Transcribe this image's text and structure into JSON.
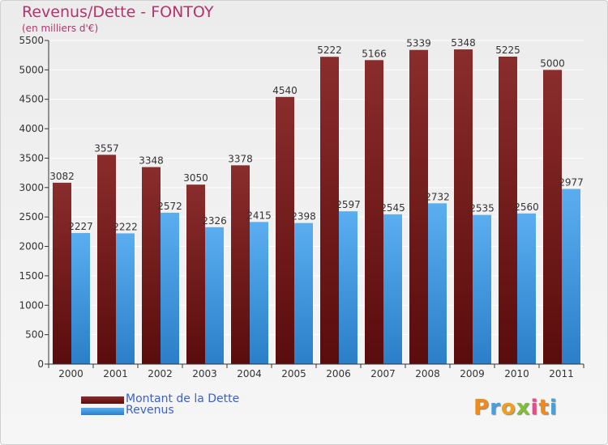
{
  "title": "Revenus/Dette - FONTOY",
  "subtitle": "(en milliers d'€)",
  "logo": {
    "text": "Proxiti",
    "letter_colors": [
      "#f08a1a",
      "#4a9fd8",
      "#f0a020",
      "#7fbf3a",
      "#e84a8a",
      "#f08a1a",
      "#4a9fd8"
    ]
  },
  "colors": {
    "dette": "#7a1e1e",
    "revenus": "#3d9be9",
    "axis": "#333333",
    "grid": "#ffffff"
  },
  "legend": [
    {
      "label": "Montant de la Dette",
      "color": "#7a1e1e"
    },
    {
      "label": "Revenus",
      "color": "#3d9be9"
    }
  ],
  "chart_data": {
    "type": "bar",
    "title": "Revenus/Dette - FONTOY",
    "subtitle": "(en milliers d'€)",
    "categories": [
      "2000",
      "2001",
      "2002",
      "2003",
      "2004",
      "2005",
      "2006",
      "2007",
      "2008",
      "2009",
      "2010",
      "2011"
    ],
    "series": [
      {
        "name": "Montant de la Dette",
        "values": [
          3082,
          3557,
          3348,
          3050,
          3378,
          4540,
          5222,
          5166,
          5339,
          5348,
          5225,
          5000
        ]
      },
      {
        "name": "Revenus",
        "values": [
          2227,
          2222,
          2572,
          2326,
          2415,
          2398,
          2597,
          2545,
          2732,
          2535,
          2560,
          2977
        ]
      }
    ],
    "ylim": [
      0,
      5500
    ],
    "yticks": [
      0,
      500,
      1000,
      1500,
      2000,
      2500,
      3000,
      3500,
      4000,
      4500,
      5000,
      5500
    ],
    "grid": true,
    "legend_position": "bottom-left"
  }
}
